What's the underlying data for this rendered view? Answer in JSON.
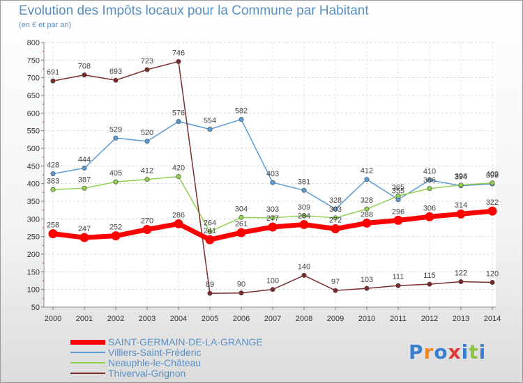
{
  "header": {
    "title": "Evolution des Impôts locaux pour la Commune par Habitant",
    "subtitle": "(en € et par an)"
  },
  "logo": {
    "text": "Proxiti",
    "colors": [
      "#3a7fcf",
      "#e8892a",
      "#3a7fcf",
      "#e03a3a",
      "#3a7fcf",
      "#8cc63f",
      "#3a7fcf"
    ]
  },
  "chart_data": {
    "type": "line",
    "x": [
      "2000",
      "2001",
      "2002",
      "2003",
      "2004",
      "2005",
      "2006",
      "2007",
      "2008",
      "2009",
      "2010",
      "2011",
      "2012",
      "2013",
      "2014"
    ],
    "ylim": [
      50,
      800
    ],
    "yticks": [
      50,
      100,
      150,
      200,
      250,
      300,
      350,
      400,
      450,
      500,
      550,
      600,
      650,
      700,
      750,
      800
    ],
    "grid": true,
    "legend_position": "bottom-left",
    "series": [
      {
        "name": "SAINT-GERMAIN-DE-LA-GRANGE",
        "color": "#ff0000",
        "emphasis": true,
        "values": [
          258,
          247,
          252,
          270,
          286,
          241,
          261,
          277,
          284,
          272,
          288,
          296,
          306,
          314,
          322
        ],
        "labels": [
          "258",
          "247",
          "252",
          "270",
          "286",
          "241",
          "261",
          "277",
          "284",
          "272",
          "288",
          "296",
          "306",
          "314",
          "322"
        ]
      },
      {
        "name": "Villiers-Saint-Fréderic",
        "color": "#5b9bd5",
        "emphasis": false,
        "values": [
          428,
          444,
          529,
          520,
          576,
          554,
          582,
          403,
          381,
          328,
          412,
          355,
          410,
          394,
          399
        ],
        "labels": [
          "428",
          "444",
          "529",
          "520",
          "576",
          "554",
          "582",
          "403",
          "381",
          "328",
          "412",
          "355",
          "410",
          "394",
          "399"
        ]
      },
      {
        "name": "Neauphle-le-Château",
        "color": "#92d050",
        "emphasis": false,
        "values": [
          383,
          387,
          405,
          412,
          420,
          264,
          304,
          303,
          309,
          303,
          328,
          365,
          386,
          396,
          402
        ],
        "labels": [
          "383",
          "387",
          "405",
          "412",
          "420",
          "264",
          "304",
          "303",
          "309",
          "303",
          "328",
          "365",
          "386",
          "396",
          "402"
        ]
      },
      {
        "name": "Thiverval-Grignon",
        "color": "#7b2d2d",
        "emphasis": false,
        "values": [
          691,
          708,
          693,
          723,
          746,
          89,
          90,
          100,
          140,
          97,
          103,
          111,
          115,
          122,
          120
        ],
        "labels": [
          "691",
          "708",
          "693",
          "723",
          "746",
          "89",
          "90",
          "100",
          "140",
          "97",
          "103",
          "111",
          "115",
          "122",
          "120"
        ]
      }
    ]
  }
}
